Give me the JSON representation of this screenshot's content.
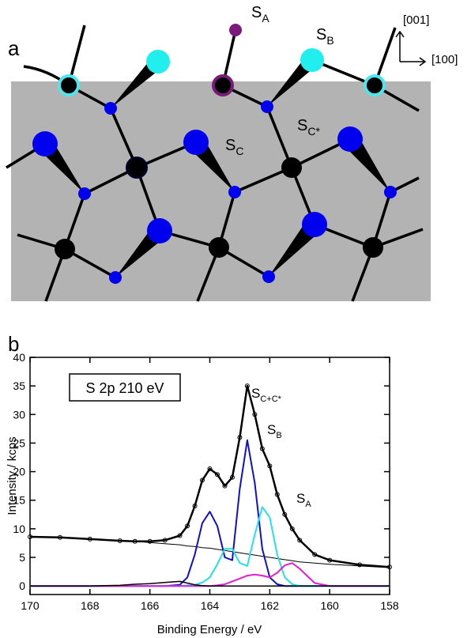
{
  "panel_a": {
    "label": "a",
    "sites": [
      {
        "main": "S",
        "sub": "A"
      },
      {
        "main": "S",
        "sub": "B"
      },
      {
        "main": "S",
        "sub": "C"
      },
      {
        "main": "S",
        "sub": "C*"
      }
    ],
    "directions": [
      "[001]",
      "[100]"
    ]
  },
  "chart_data": {
    "type": "line",
    "panel_label": "b",
    "box_label": "S 2p 210 eV",
    "x_label": "Binding Energy / eV",
    "y_label": "Intensity / kcps",
    "annotations": [
      {
        "main": "S",
        "sub": "C+C*"
      },
      {
        "main": "S",
        "sub": "B"
      },
      {
        "main": "S",
        "sub": "A"
      }
    ],
    "xlim": [
      170,
      158
    ],
    "xticks": [
      170,
      168,
      166,
      164,
      162,
      160,
      158
    ],
    "ylim": [
      -1.5,
      40
    ],
    "yticks": [
      0,
      5,
      10,
      15,
      20,
      25,
      30,
      35,
      40
    ],
    "x": [
      170,
      169,
      168,
      167,
      166.5,
      166,
      165.5,
      165,
      164.75,
      164.5,
      164.25,
      164,
      163.75,
      163.5,
      163.25,
      163,
      162.75,
      162.5,
      162.25,
      162,
      161.75,
      161.5,
      161.25,
      161,
      160.5,
      160,
      159,
      158
    ],
    "series": [
      {
        "color": "#000000",
        "width": 2.5,
        "markers": true,
        "values": [
          8.6,
          8.5,
          8.2,
          7.9,
          7.8,
          7.8,
          8.0,
          8.8,
          10.5,
          14,
          18.5,
          20.5,
          19.5,
          17.5,
          19,
          26,
          35,
          30,
          24,
          21,
          16,
          12.5,
          10,
          8,
          5.5,
          4.5,
          3.7,
          3.3
        ]
      },
      {
        "color": "#000000",
        "width": 1,
        "markers": false,
        "values": [
          8.6,
          8.4,
          8.2,
          7.9,
          7.8,
          7.6,
          7.4,
          7.2,
          7.0,
          6.9,
          6.7,
          6.6,
          6.4,
          6.2,
          6.0,
          5.8,
          5.6,
          5.4,
          5.2,
          5.0,
          4.8,
          4.6,
          4.4,
          4.2,
          4.0,
          3.8,
          3.5,
          3.2
        ]
      },
      {
        "color": "#1010cc",
        "width": 2,
        "markers": false,
        "values": [
          0,
          0,
          0,
          0,
          0,
          0,
          0,
          0.2,
          1.5,
          5.5,
          11,
          13,
          10.5,
          5,
          4.5,
          17,
          25.5,
          18,
          6.5,
          1.5,
          0.3,
          0,
          0,
          0,
          0,
          0,
          0,
          0
        ]
      },
      {
        "color": "#22e0ee",
        "width": 2,
        "markers": false,
        "values": [
          0,
          0,
          0,
          0,
          0,
          0,
          0,
          0,
          0.1,
          0.2,
          0.6,
          1.5,
          3.8,
          6.5,
          6.5,
          4,
          3.5,
          9,
          13.8,
          12,
          5.5,
          1.5,
          0.3,
          0,
          0,
          0,
          0,
          0
        ]
      },
      {
        "color": "#e020d0",
        "width": 2,
        "markers": false,
        "values": [
          0,
          0,
          0,
          0,
          0,
          0,
          0,
          0,
          0,
          0,
          0,
          0,
          0.1,
          0.3,
          0.8,
          1.3,
          1.8,
          2.0,
          1.8,
          1.5,
          2.3,
          3.6,
          4.0,
          3.0,
          0.5,
          0,
          0,
          0
        ]
      },
      {
        "color": "#000000",
        "width": 1.5,
        "markers": false,
        "values": [
          0,
          0,
          0,
          0.1,
          0.3,
          0.4,
          0.6,
          0.8,
          0.5,
          0.2,
          0.05,
          0,
          0,
          0,
          0,
          0,
          0,
          0,
          0,
          0,
          0,
          0,
          0,
          0,
          0,
          0,
          0,
          0
        ]
      }
    ]
  }
}
